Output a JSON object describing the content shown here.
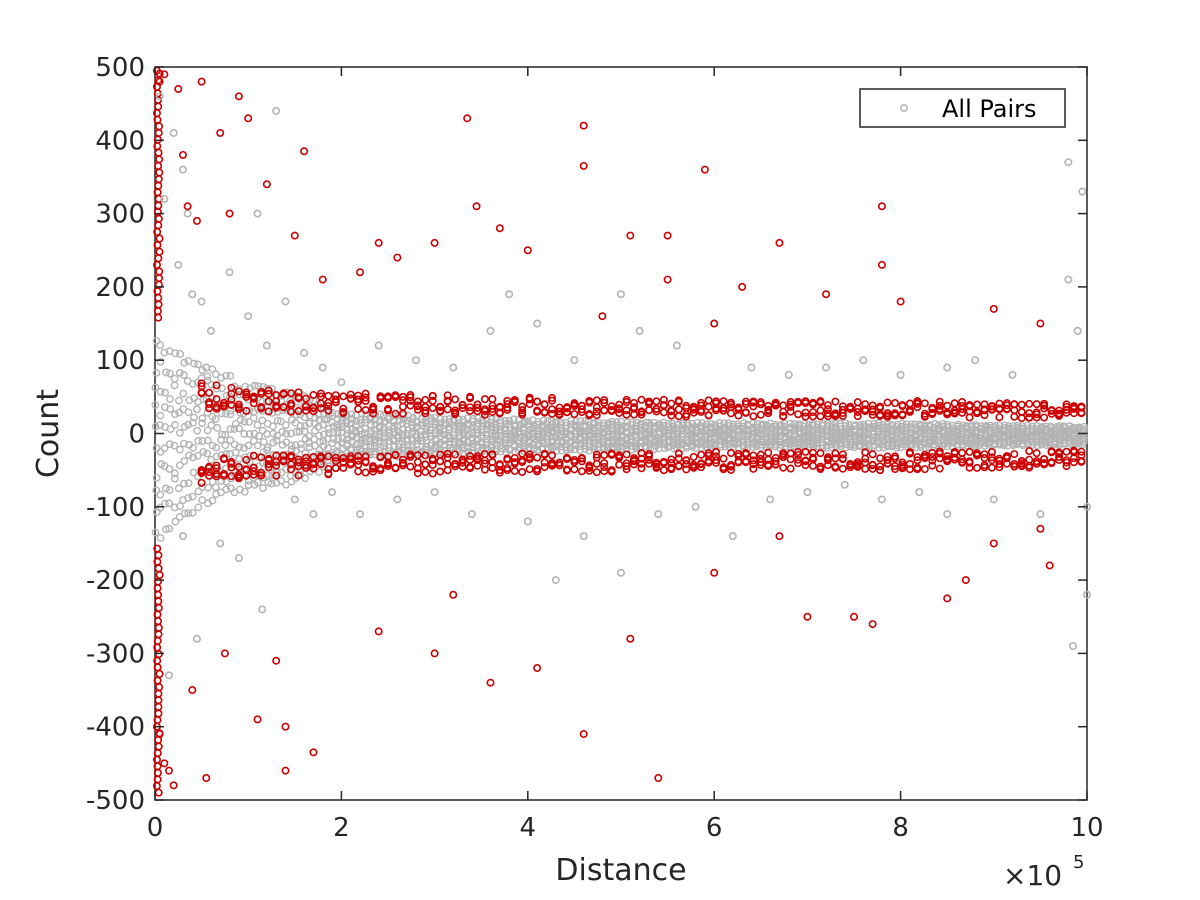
{
  "chart_data": {
    "type": "scatter",
    "title": "",
    "xlabel": "Distance",
    "ylabel": "Count",
    "xlim": [
      0,
      10
    ],
    "ylim": [
      -500,
      500
    ],
    "x_exponent_label": {
      "base": "×10",
      "exponent": "5"
    },
    "x_ticks": [
      "0",
      "2",
      "4",
      "6",
      "8",
      "10"
    ],
    "y_ticks": [
      "500",
      "400",
      "300",
      "200",
      "100",
      "0",
      "-100",
      "-200",
      "-300",
      "-400",
      "-500"
    ],
    "grid": false,
    "legend": {
      "position": "top-right",
      "entries": [
        "All Pairs"
      ]
    },
    "colors": {
      "all_pairs": "#b3b3b3",
      "highlighted": "#cc0000",
      "axis": "#262626"
    },
    "series": [
      {
        "name": "All Pairs",
        "marker": "circle-open",
        "color": "#b3b3b3",
        "points": [
          [
            0.05,
            460
          ],
          [
            0.1,
            320
          ],
          [
            0.15,
            -330
          ],
          [
            0.2,
            410
          ],
          [
            0.25,
            230
          ],
          [
            0.3,
            360
          ],
          [
            0.3,
            -140
          ],
          [
            0.35,
            300
          ],
          [
            0.4,
            190
          ],
          [
            0.45,
            -280
          ],
          [
            0.5,
            180
          ],
          [
            0.55,
            90
          ],
          [
            0.6,
            140
          ],
          [
            0.7,
            -150
          ],
          [
            0.8,
            220
          ],
          [
            0.9,
            -170
          ],
          [
            1.0,
            160
          ],
          [
            1.1,
            300
          ],
          [
            1.15,
            -240
          ],
          [
            1.2,
            120
          ],
          [
            1.3,
            440
          ],
          [
            1.4,
            180
          ],
          [
            1.5,
            -90
          ],
          [
            1.6,
            110
          ],
          [
            1.7,
            -110
          ],
          [
            1.8,
            90
          ],
          [
            1.9,
            -80
          ],
          [
            2.0,
            70
          ],
          [
            2.2,
            -110
          ],
          [
            2.4,
            120
          ],
          [
            2.6,
            -90
          ],
          [
            2.8,
            100
          ],
          [
            3.0,
            -80
          ],
          [
            3.2,
            90
          ],
          [
            3.4,
            -110
          ],
          [
            3.6,
            140
          ],
          [
            3.8,
            190
          ],
          [
            4.0,
            -120
          ],
          [
            4.1,
            150
          ],
          [
            4.3,
            -200
          ],
          [
            4.5,
            100
          ],
          [
            4.6,
            -140
          ],
          [
            5.0,
            190
          ],
          [
            5.0,
            -190
          ],
          [
            5.2,
            140
          ],
          [
            5.4,
            -110
          ],
          [
            5.6,
            120
          ],
          [
            5.8,
            -100
          ],
          [
            6.0,
            150
          ],
          [
            6.2,
            -140
          ],
          [
            6.4,
            90
          ],
          [
            6.6,
            -90
          ],
          [
            6.8,
            80
          ],
          [
            7.0,
            -80
          ],
          [
            7.2,
            90
          ],
          [
            7.4,
            -70
          ],
          [
            7.6,
            100
          ],
          [
            7.8,
            -90
          ],
          [
            8.0,
            80
          ],
          [
            8.2,
            -80
          ],
          [
            8.5,
            90
          ],
          [
            8.5,
            -110
          ],
          [
            8.8,
            100
          ],
          [
            9.0,
            -90
          ],
          [
            9.2,
            80
          ],
          [
            9.5,
            -110
          ],
          [
            9.8,
            370
          ],
          [
            9.8,
            210
          ],
          [
            9.85,
            -290
          ],
          [
            9.9,
            140
          ],
          [
            9.95,
            330
          ],
          [
            10.0,
            -220
          ],
          [
            10.0,
            -100
          ]
        ]
      },
      {
        "name": "",
        "marker": "circle-open",
        "color": "#cc0000",
        "points": [
          [
            0.02,
            495
          ],
          [
            0.05,
            480
          ],
          [
            0.1,
            490
          ],
          [
            0.15,
            -460
          ],
          [
            0.2,
            -480
          ],
          [
            0.25,
            470
          ],
          [
            0.05,
            -410
          ],
          [
            0.1,
            -450
          ],
          [
            0.3,
            380
          ],
          [
            0.35,
            310
          ],
          [
            0.4,
            -350
          ],
          [
            0.45,
            290
          ],
          [
            0.5,
            480
          ],
          [
            0.55,
            -470
          ],
          [
            0.7,
            410
          ],
          [
            0.9,
            460
          ],
          [
            1.0,
            430
          ],
          [
            0.8,
            300
          ],
          [
            0.75,
            -300
          ],
          [
            1.1,
            -390
          ],
          [
            1.2,
            340
          ],
          [
            1.3,
            -310
          ],
          [
            1.4,
            -460
          ],
          [
            1.4,
            -400
          ],
          [
            1.5,
            270
          ],
          [
            1.6,
            385
          ],
          [
            1.7,
            -435
          ],
          [
            1.8,
            210
          ],
          [
            2.2,
            220
          ],
          [
            2.4,
            260
          ],
          [
            2.4,
            -270
          ],
          [
            2.6,
            240
          ],
          [
            3.0,
            -300
          ],
          [
            3.0,
            260
          ],
          [
            3.2,
            -220
          ],
          [
            3.35,
            430
          ],
          [
            3.45,
            310
          ],
          [
            3.6,
            -340
          ],
          [
            3.7,
            280
          ],
          [
            4.0,
            250
          ],
          [
            4.1,
            -320
          ],
          [
            4.6,
            420
          ],
          [
            4.6,
            365
          ],
          [
            4.6,
            -410
          ],
          [
            4.8,
            160
          ],
          [
            5.1,
            270
          ],
          [
            5.1,
            -280
          ],
          [
            5.4,
            -470
          ],
          [
            5.5,
            270
          ],
          [
            5.5,
            210
          ],
          [
            5.9,
            360
          ],
          [
            6.0,
            150
          ],
          [
            6.0,
            -190
          ],
          [
            6.3,
            200
          ],
          [
            6.7,
            260
          ],
          [
            6.7,
            -140
          ],
          [
            7.0,
            -250
          ],
          [
            7.2,
            190
          ],
          [
            7.5,
            -250
          ],
          [
            7.7,
            -260
          ],
          [
            7.8,
            310
          ],
          [
            7.8,
            230
          ],
          [
            8.0,
            180
          ],
          [
            8.5,
            -225
          ],
          [
            8.7,
            -200
          ],
          [
            9.0,
            170
          ],
          [
            9.0,
            -150
          ],
          [
            9.5,
            150
          ],
          [
            9.6,
            -180
          ],
          [
            9.5,
            -130
          ]
        ]
      }
    ],
    "density_bands": {
      "dense_all_pairs_envelope": [
        [
          0,
          135,
          -150
        ],
        [
          0.5,
          100,
          -100
        ],
        [
          1.0,
          70,
          -80
        ],
        [
          1.5,
          60,
          -70
        ],
        [
          2.0,
          30,
          -35
        ],
        [
          4.0,
          20,
          -25
        ],
        [
          6.0,
          15,
          -20
        ],
        [
          8.0,
          15,
          -20
        ],
        [
          10.0,
          10,
          -15
        ]
      ],
      "dense_highlighted_envelope": [
        [
          0.5,
          70,
          -70
        ],
        [
          1.0,
          60,
          -60
        ],
        [
          2.0,
          55,
          -55
        ],
        [
          4.0,
          50,
          -55
        ],
        [
          6.0,
          45,
          -50
        ],
        [
          8.0,
          45,
          -50
        ],
        [
          10.0,
          40,
          -45
        ]
      ]
    }
  }
}
